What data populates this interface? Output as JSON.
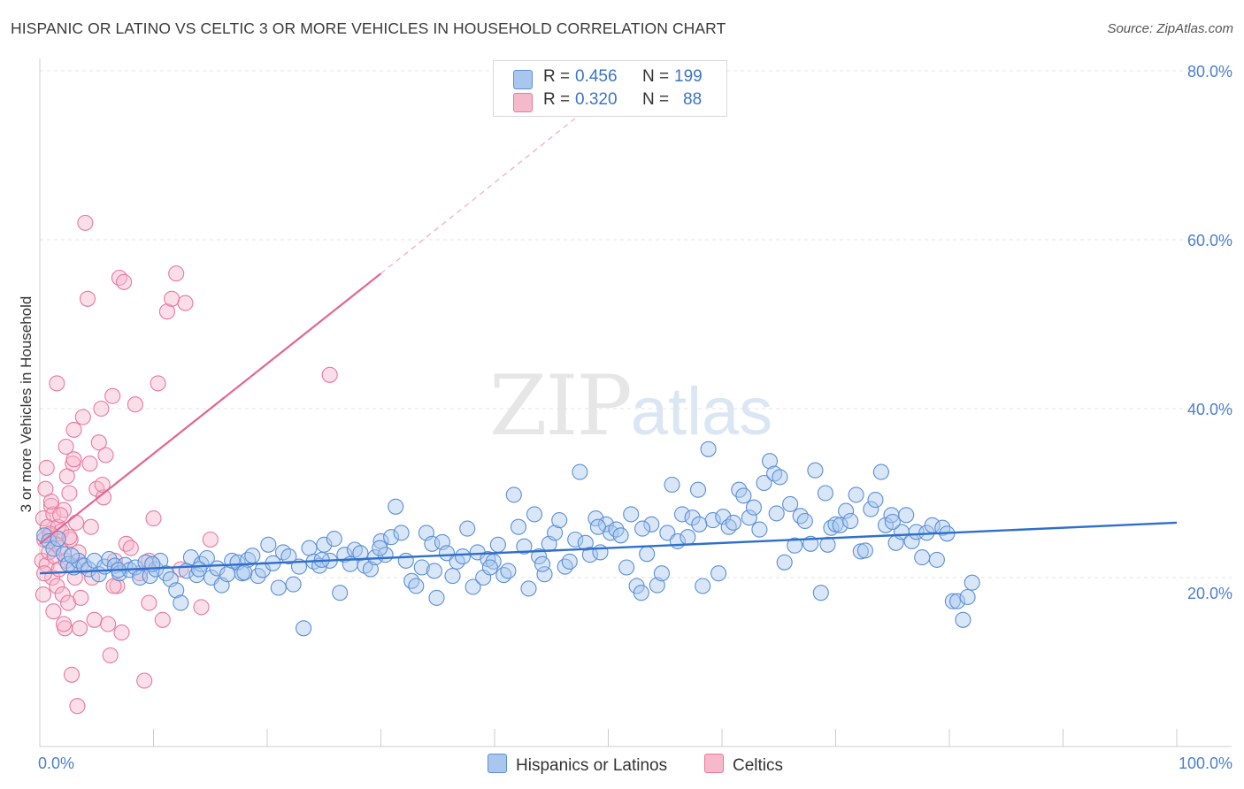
{
  "title": "HISPANIC OR LATINO VS CELTIC 3 OR MORE VEHICLES IN HOUSEHOLD CORRELATION CHART",
  "source": "Source: ZipAtlas.com",
  "watermark": {
    "zip": "ZIP",
    "atlas": "atlas"
  },
  "legend_top": {
    "rows": [
      {
        "r_label": "R =",
        "r_value": "0.456",
        "n_label": "N =",
        "n_value": "199"
      },
      {
        "r_label": "R =",
        "r_value": "0.320",
        "n_label": "N =",
        "n_value": "88"
      }
    ]
  },
  "legend_bottom": {
    "items": [
      "Hispanics or Latinos",
      "Celtics"
    ]
  },
  "colors": {
    "blue_fill": "#a9c7ee",
    "blue_stroke": "#5b8fd6",
    "blue_line": "#2f6fcc",
    "pink_fill": "#f6b9cb",
    "pink_stroke": "#e8799c",
    "pink_line": "#e26592",
    "grid": "#e3e3e3",
    "tick_text": "#4a7fcf"
  },
  "chart_data": {
    "type": "scatter",
    "ylabel": "3 or more Vehicles in Household",
    "xlim": [
      0,
      100
    ],
    "ylim": [
      0,
      85
    ],
    "x_tick_labels": [
      {
        "value": 0,
        "label": "0.0%"
      },
      {
        "value": 100,
        "label": "100.0%"
      }
    ],
    "y_tick_labels": [
      {
        "value": 20,
        "label": "20.0%"
      },
      {
        "value": 40,
        "label": "40.0%"
      },
      {
        "value": 60,
        "label": "60.0%"
      },
      {
        "value": 80,
        "label": "80.0%"
      }
    ],
    "grid": true,
    "series": [
      {
        "name": "Hispanics or Latinos",
        "trend": {
          "x": [
            0,
            100
          ],
          "y": [
            20.5,
            26.5
          ]
        },
        "points": [
          [
            0.4,
            25.0
          ],
          [
            0.8,
            24.3
          ],
          [
            1.2,
            23.4
          ],
          [
            1.6,
            24.6
          ],
          [
            2.1,
            22.8
          ],
          [
            2.5,
            21.6
          ],
          [
            3.0,
            21.2
          ],
          [
            3.4,
            22.0
          ],
          [
            3.9,
            21.4
          ],
          [
            4.3,
            21.0
          ],
          [
            4.8,
            22.0
          ],
          [
            5.2,
            20.4
          ],
          [
            5.7,
            21.3
          ],
          [
            6.1,
            22.2
          ],
          [
            6.6,
            21.4
          ],
          [
            7.0,
            20.5
          ],
          [
            7.5,
            21.5
          ],
          [
            7.9,
            20.9
          ],
          [
            8.4,
            21.2
          ],
          [
            8.8,
            20.0
          ],
          [
            9.3,
            21.8
          ],
          [
            9.7,
            20.2
          ],
          [
            10.2,
            21.0
          ],
          [
            10.6,
            22.0
          ],
          [
            11.1,
            20.5
          ],
          [
            11.5,
            19.8
          ],
          [
            12.0,
            18.5
          ],
          [
            12.4,
            17.0
          ],
          [
            12.9,
            20.8
          ],
          [
            13.3,
            22.4
          ],
          [
            13.8,
            20.3
          ],
          [
            14.2,
            21.6
          ],
          [
            14.7,
            22.3
          ],
          [
            15.1,
            20.0
          ],
          [
            15.6,
            21.1
          ],
          [
            16.0,
            19.1
          ],
          [
            16.5,
            20.4
          ],
          [
            16.9,
            22.0
          ],
          [
            17.4,
            21.8
          ],
          [
            17.8,
            20.5
          ],
          [
            18.3,
            22.1
          ],
          [
            18.7,
            22.6
          ],
          [
            19.2,
            20.2
          ],
          [
            19.6,
            20.9
          ],
          [
            20.1,
            23.9
          ],
          [
            20.5,
            21.7
          ],
          [
            21.0,
            18.8
          ],
          [
            21.4,
            23.0
          ],
          [
            21.9,
            22.5
          ],
          [
            22.3,
            19.2
          ],
          [
            22.8,
            21.3
          ],
          [
            23.2,
            14.0
          ],
          [
            23.7,
            23.5
          ],
          [
            24.1,
            21.9
          ],
          [
            24.6,
            21.4
          ],
          [
            25.0,
            23.9
          ],
          [
            25.5,
            22.0
          ],
          [
            25.9,
            24.6
          ],
          [
            26.4,
            18.2
          ],
          [
            26.8,
            22.7
          ],
          [
            27.3,
            21.6
          ],
          [
            27.7,
            23.3
          ],
          [
            28.2,
            22.9
          ],
          [
            28.6,
            21.4
          ],
          [
            29.1,
            21.0
          ],
          [
            29.5,
            22.4
          ],
          [
            30.0,
            24.3
          ],
          [
            30.4,
            22.7
          ],
          [
            30.9,
            24.8
          ],
          [
            31.3,
            28.4
          ],
          [
            31.8,
            25.3
          ],
          [
            32.2,
            22.0
          ],
          [
            32.7,
            19.6
          ],
          [
            33.1,
            19.0
          ],
          [
            33.6,
            21.2
          ],
          [
            34.0,
            25.3
          ],
          [
            34.5,
            24.0
          ],
          [
            34.9,
            17.6
          ],
          [
            35.4,
            24.2
          ],
          [
            35.8,
            22.9
          ],
          [
            36.3,
            20.2
          ],
          [
            36.7,
            21.9
          ],
          [
            37.2,
            22.5
          ],
          [
            37.6,
            25.8
          ],
          [
            38.1,
            18.9
          ],
          [
            38.5,
            23.0
          ],
          [
            39.0,
            20.0
          ],
          [
            39.4,
            22.2
          ],
          [
            39.9,
            21.9
          ],
          [
            40.3,
            23.9
          ],
          [
            40.8,
            20.3
          ],
          [
            41.2,
            20.8
          ],
          [
            41.7,
            29.8
          ],
          [
            42.1,
            26.0
          ],
          [
            42.6,
            23.7
          ],
          [
            43.0,
            18.7
          ],
          [
            43.5,
            27.5
          ],
          [
            43.9,
            22.5
          ],
          [
            44.4,
            20.4
          ],
          [
            44.8,
            24.0
          ],
          [
            45.3,
            25.3
          ],
          [
            45.7,
            26.8
          ],
          [
            46.2,
            21.3
          ],
          [
            46.6,
            21.9
          ],
          [
            47.1,
            24.5
          ],
          [
            47.5,
            32.5
          ],
          [
            48.0,
            24.1
          ],
          [
            48.4,
            22.7
          ],
          [
            48.9,
            27.0
          ],
          [
            49.3,
            23.0
          ],
          [
            49.8,
            26.3
          ],
          [
            50.2,
            25.3
          ],
          [
            50.7,
            25.7
          ],
          [
            51.1,
            25.0
          ],
          [
            51.6,
            21.2
          ],
          [
            52.0,
            27.5
          ],
          [
            52.5,
            19.0
          ],
          [
            52.9,
            18.2
          ],
          [
            53.4,
            22.8
          ],
          [
            53.8,
            26.3
          ],
          [
            54.3,
            19.1
          ],
          [
            54.7,
            20.5
          ],
          [
            55.2,
            25.3
          ],
          [
            55.6,
            31.0
          ],
          [
            56.1,
            24.3
          ],
          [
            56.5,
            27.5
          ],
          [
            57.0,
            24.8
          ],
          [
            57.4,
            27.1
          ],
          [
            57.9,
            30.4
          ],
          [
            58.3,
            19.0
          ],
          [
            58.8,
            35.2
          ],
          [
            59.2,
            26.8
          ],
          [
            59.7,
            20.5
          ],
          [
            60.1,
            27.2
          ],
          [
            60.6,
            26.0
          ],
          [
            61.0,
            26.5
          ],
          [
            61.5,
            30.4
          ],
          [
            61.9,
            29.7
          ],
          [
            62.4,
            27.1
          ],
          [
            62.8,
            28.3
          ],
          [
            63.3,
            25.7
          ],
          [
            63.7,
            31.2
          ],
          [
            64.2,
            33.8
          ],
          [
            64.6,
            32.3
          ],
          [
            65.1,
            31.9
          ],
          [
            65.5,
            21.8
          ],
          [
            66.0,
            28.7
          ],
          [
            66.4,
            23.8
          ],
          [
            66.9,
            27.3
          ],
          [
            67.3,
            26.7
          ],
          [
            67.8,
            24.0
          ],
          [
            68.2,
            32.7
          ],
          [
            68.7,
            18.2
          ],
          [
            69.1,
            30.0
          ],
          [
            69.6,
            25.9
          ],
          [
            70.0,
            26.3
          ],
          [
            70.4,
            26.2
          ],
          [
            70.9,
            27.9
          ],
          [
            71.3,
            26.7
          ],
          [
            71.8,
            29.8
          ],
          [
            72.2,
            23.1
          ],
          [
            72.6,
            23.2
          ],
          [
            73.1,
            28.1
          ],
          [
            73.5,
            29.2
          ],
          [
            74.0,
            32.5
          ],
          [
            74.4,
            26.2
          ],
          [
            74.9,
            27.4
          ],
          [
            75.3,
            24.1
          ],
          [
            75.8,
            25.4
          ],
          [
            76.2,
            27.4
          ],
          [
            76.7,
            24.3
          ],
          [
            77.1,
            25.4
          ],
          [
            77.6,
            22.4
          ],
          [
            78.0,
            25.3
          ],
          [
            78.5,
            26.2
          ],
          [
            78.9,
            22.1
          ],
          [
            79.4,
            25.9
          ],
          [
            79.8,
            25.2
          ],
          [
            80.3,
            17.2
          ],
          [
            80.7,
            17.2
          ],
          [
            81.2,
            15.0
          ],
          [
            81.6,
            17.7
          ],
          [
            82.0,
            19.4
          ],
          [
            2.8,
            22.6
          ],
          [
            6.9,
            20.9
          ],
          [
            9.9,
            21.6
          ],
          [
            14.0,
            21.0
          ],
          [
            18.0,
            20.6
          ],
          [
            24.8,
            22.1
          ],
          [
            29.9,
            23.5
          ],
          [
            34.7,
            20.8
          ],
          [
            39.6,
            21.2
          ],
          [
            44.2,
            21.6
          ],
          [
            49.1,
            26.0
          ],
          [
            53.0,
            25.8
          ],
          [
            58.0,
            26.3
          ],
          [
            64.8,
            27.6
          ],
          [
            69.3,
            23.9
          ],
          [
            75.0,
            26.6
          ]
        ]
      },
      {
        "name": "Celtics",
        "trend": {
          "x": [
            0,
            30
          ],
          "y": [
            24.0,
            56.0
          ]
        },
        "trend_extension": {
          "x": [
            30,
            50
          ],
          "y": [
            56.0,
            77.5
          ]
        },
        "points": [
          [
            0.2,
            22.0
          ],
          [
            0.3,
            27.0
          ],
          [
            0.4,
            24.5
          ],
          [
            0.5,
            30.5
          ],
          [
            0.6,
            21.5
          ],
          [
            0.7,
            26.0
          ],
          [
            0.8,
            23.0
          ],
          [
            0.9,
            25.0
          ],
          [
            1.0,
            28.5
          ],
          [
            1.1,
            20.0
          ],
          [
            1.2,
            27.5
          ],
          [
            1.3,
            22.5
          ],
          [
            1.4,
            24.0
          ],
          [
            1.5,
            19.0
          ],
          [
            1.6,
            26.0
          ],
          [
            1.7,
            21.0
          ],
          [
            1.8,
            23.5
          ],
          [
            1.9,
            25.5
          ],
          [
            2.0,
            18.0
          ],
          [
            2.1,
            28.0
          ],
          [
            2.2,
            14.0
          ],
          [
            2.3,
            22.0
          ],
          [
            2.4,
            32.0
          ],
          [
            2.5,
            17.0
          ],
          [
            2.6,
            30.0
          ],
          [
            2.7,
            24.5
          ],
          [
            2.8,
            8.5
          ],
          [
            2.9,
            33.5
          ],
          [
            3.0,
            37.5
          ],
          [
            3.1,
            20.0
          ],
          [
            3.2,
            26.5
          ],
          [
            3.3,
            4.8
          ],
          [
            3.4,
            23.0
          ],
          [
            3.5,
            14.0
          ],
          [
            3.6,
            21.5
          ],
          [
            3.8,
            39.0
          ],
          [
            4.0,
            62.0
          ],
          [
            4.2,
            53.0
          ],
          [
            4.4,
            33.5
          ],
          [
            4.6,
            20.0
          ],
          [
            4.8,
            15.0
          ],
          [
            5.0,
            30.5
          ],
          [
            5.2,
            36.0
          ],
          [
            5.4,
            40.0
          ],
          [
            5.6,
            29.5
          ],
          [
            5.8,
            34.5
          ],
          [
            6.0,
            14.5
          ],
          [
            6.2,
            10.8
          ],
          [
            6.4,
            41.5
          ],
          [
            6.6,
            22.0
          ],
          [
            6.8,
            19.0
          ],
          [
            7.0,
            55.5
          ],
          [
            7.2,
            13.5
          ],
          [
            7.4,
            55.0
          ],
          [
            7.6,
            24.0
          ],
          [
            8.0,
            23.5
          ],
          [
            8.4,
            40.5
          ],
          [
            8.8,
            20.5
          ],
          [
            9.2,
            7.8
          ],
          [
            9.6,
            22.0
          ],
          [
            10.0,
            27.0
          ],
          [
            10.4,
            43.0
          ],
          [
            10.8,
            15.0
          ],
          [
            11.2,
            51.5
          ],
          [
            11.6,
            53.0
          ],
          [
            12.0,
            56.0
          ],
          [
            12.4,
            21.0
          ],
          [
            12.8,
            52.5
          ],
          [
            14.2,
            16.5
          ],
          [
            15.0,
            24.5
          ],
          [
            1.5,
            43.0
          ],
          [
            2.3,
            35.5
          ],
          [
            0.6,
            33.0
          ],
          [
            1.0,
            29.0
          ],
          [
            3.0,
            34.0
          ],
          [
            4.5,
            26.0
          ],
          [
            5.5,
            31.0
          ],
          [
            6.5,
            19.0
          ],
          [
            0.4,
            20.5
          ],
          [
            0.9,
            25.2
          ],
          [
            1.8,
            27.4
          ],
          [
            2.6,
            24.8
          ],
          [
            3.6,
            17.6
          ],
          [
            1.2,
            16.0
          ],
          [
            2.1,
            14.5
          ],
          [
            9.6,
            17.0
          ],
          [
            25.5,
            44.0
          ],
          [
            0.3,
            18.0
          ]
        ]
      }
    ]
  }
}
